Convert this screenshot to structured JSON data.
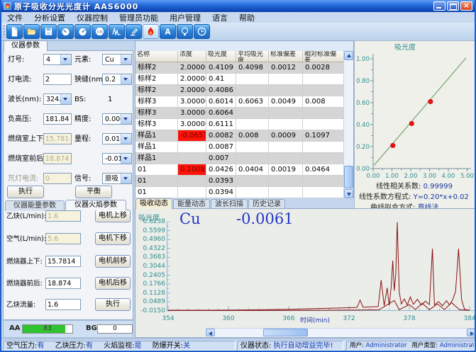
{
  "colors": {
    "titlebar_top": "#5d9cf4",
    "titlebar_bottom": "#0b3fae",
    "accent_blue": "#16369c",
    "red_cell_bg": "#fb1408",
    "red_cell_text": "#7c0000",
    "trace": "#8b0f0f",
    "curve_line": "#7cab7c",
    "curve_point": "#e01212",
    "tick_teal": "#2e8f8f",
    "progress_green": "#2fc42f"
  },
  "window": {
    "title": "原子吸收分光光度计  AAS6000"
  },
  "menu": [
    "文件",
    "分析设置",
    "仪器控制",
    "管理员功能",
    "用户管理",
    "语言",
    "帮助"
  ],
  "toolbar": {
    "icons": [
      "new-file",
      "open-folder",
      "save",
      "lamp-gauge",
      "energy-gauge",
      "gain-100-gauge",
      "wavelength-scan",
      "burner-adjust",
      "flame-ignite",
      "auto-zero",
      "lamp-turret",
      "timer"
    ]
  },
  "left_panel": {
    "tab": "仪器参数",
    "rows": [
      {
        "l1": "灯号:",
        "v1": "4",
        "l2": "元素:",
        "v2": "Cu"
      },
      {
        "l1": "灯电流:",
        "v1": "2",
        "l2": "狭缝(nm):",
        "v2": "0.2"
      },
      {
        "l1": "波长(nm):",
        "v1": "324.8",
        "l2": "BS:",
        "v2": "1"
      },
      {
        "l1": "负高压:",
        "v1": "181.84",
        "l2": "精度:",
        "v2": "0.0000"
      },
      {
        "l1": "燃烧室上下:",
        "v1": "15.7814",
        "l2": "量程:",
        "v2": "0.0150"
      },
      {
        "l1": "燃烧室前后:",
        "v1": "18.874",
        "l2": "",
        "v2": "-0.0150"
      },
      {
        "l1": "氘灯电流:",
        "v1": "0",
        "l2": "信号:",
        "v2": "原吸"
      }
    ],
    "execute_button": "执行",
    "balance_button": "平衡",
    "sub_tabs": [
      "仪器能量参数",
      "仪器火焰参数"
    ],
    "flame_rows": [
      {
        "label": "乙炔(L/min):",
        "value": "1.6",
        "button": "电机上移"
      },
      {
        "label": "空气(L/min):",
        "value": "5.6",
        "button": "电机下移"
      },
      {
        "label": "燃烧器上下:",
        "value": "15.7814",
        "button": "电机前移"
      },
      {
        "label": "燃烧器前后:",
        "value": "18.874",
        "button": "电机后移"
      },
      {
        "label": "乙炔流量:",
        "value": "1.6",
        "button": "执行"
      }
    ]
  },
  "results": {
    "project_label": "项目名称:",
    "project_name": "091119Cu",
    "columns": [
      "名称",
      "浓度",
      "吸光度",
      "平均吸光度",
      "标准偏差",
      "相对标准偏差"
    ],
    "rows": [
      [
        "标样2",
        "2.00000",
        "0.4109",
        "0.4098",
        "0.0012",
        "0.0028"
      ],
      [
        "标样2",
        "2.00000",
        "0.41",
        "",
        "",
        ""
      ],
      [
        "标样2",
        "2.00000",
        "0.4086",
        "",
        "",
        ""
      ],
      [
        "标样3",
        "3.00000",
        "0.6014",
        "0.6063",
        "0.0049",
        "0.008"
      ],
      [
        "标样3",
        "3.00000",
        "0.6064",
        "",
        "",
        ""
      ],
      [
        "标样3",
        "3.00000",
        "0.6111",
        "",
        "",
        ""
      ],
      [
        "样品1",
        "-0.0653",
        "0.0082",
        "0.008",
        "0.0009",
        "0.1097"
      ],
      [
        "样品1",
        "",
        "0.0087",
        "",
        "",
        ""
      ],
      [
        "样品1",
        "",
        "0.007",
        "",
        "",
        ""
      ],
      [
        "01",
        "0.1008",
        "0.0426",
        "0.0404",
        "0.0019",
        "0.0464"
      ],
      [
        "01",
        "",
        "0.0393",
        "",
        "",
        ""
      ],
      [
        "01",
        "",
        "0.0394",
        "",
        "",
        ""
      ]
    ],
    "red_cells": [
      [
        6,
        1
      ],
      [
        9,
        1
      ]
    ]
  },
  "bottom_tabs": [
    "吸收动态",
    "能量动态",
    "波长扫描",
    "历史记录"
  ],
  "readout": {
    "element": "Cu",
    "value": "-0.0061"
  },
  "signal": {
    "aa_label": "AA",
    "aa_value": "83",
    "bg_label": "BG",
    "bg_value": "0"
  },
  "statusbar": {
    "left": [
      {
        "label": "空气压力:",
        "value": "有"
      },
      {
        "label": "乙炔压力:",
        "value": "有"
      },
      {
        "label": "火焰监视:",
        "value": "是"
      },
      {
        "label": "防爆开关:",
        "value": "关"
      }
    ],
    "instrument_label": "仪器状态:",
    "instrument_value": "执行自动增益完毕!",
    "user_label": "用户:",
    "user_value": "Administrator",
    "user_type_label": "用户类型:",
    "user_type_value": "Administrator"
  },
  "chart_data": [
    {
      "id": "calibration-curve",
      "type": "scatter",
      "title": "吸光度",
      "x_ticks": [
        0,
        1,
        2,
        3,
        4,
        5
      ],
      "y_ticks": [
        0,
        0.2,
        0.4,
        0.6,
        0.8,
        1.0
      ],
      "x_tick_labels": [
        "0.00",
        "1.00",
        "2.00",
        "3.00",
        "4.00",
        "5.00"
      ],
      "y_tick_labels": [
        "0.00",
        "0.20",
        "0.40",
        "0.60",
        "0.80",
        "1.00"
      ],
      "xlim": [
        0,
        5.2
      ],
      "ylim": [
        0,
        1.05
      ],
      "fit_line": {
        "x": [
          0.05,
          4.95
        ],
        "y": [
          0.03,
          1.01
        ]
      },
      "points": {
        "x": [
          1.05,
          2.05,
          3.05
        ],
        "y": [
          0.21,
          0.41,
          0.61
        ]
      },
      "stats": [
        {
          "label": "线性相关系数:",
          "value": "0.99999"
        },
        {
          "label": "线性系数方程式:",
          "value": "Y=0.20*x+0.02"
        },
        {
          "label": "曲线拟合方式:",
          "value": "直线法"
        }
      ]
    },
    {
      "id": "absorption-dynamics",
      "type": "line",
      "ylabel": "吸光度",
      "xlabel": "时间(min)",
      "y_tick_labels": [
        "0.6238",
        "0.5599",
        "0.4960",
        "0.4322",
        "0.3683",
        "0.3044",
        "0.2405",
        "0.1766",
        "0.1128",
        "0.0489",
        "-0.0150"
      ],
      "x_ticks": [
        354,
        360,
        366,
        372,
        378,
        384
      ],
      "x_tick_labels": [
        "354",
        "360",
        "366",
        "372",
        "378",
        "384"
      ],
      "xlim": [
        354,
        384
      ],
      "ylim": [
        -0.015,
        0.6238
      ],
      "series": [
        {
          "name": "absorbance-trace",
          "points": [
            [
              354,
              -0.01
            ],
            [
              358,
              -0.01
            ],
            [
              361,
              -0.009
            ],
            [
              364,
              -0.006
            ],
            [
              366,
              -0.004
            ],
            [
              368,
              0
            ],
            [
              370,
              0.004
            ],
            [
              372,
              0.008
            ],
            [
              372.8,
              0.01
            ],
            [
              373.1,
              0.062
            ],
            [
              373.4,
              0.012
            ],
            [
              374.2,
              0.014
            ],
            [
              374.9,
              0.016
            ],
            [
              375.2,
              0.205
            ],
            [
              375.5,
              0.022
            ],
            [
              375.8,
              0.15
            ],
            [
              376,
              0.024
            ],
            [
              376.2,
              0.16
            ],
            [
              376.35,
              0.345
            ],
            [
              376.5,
              0.13
            ],
            [
              376.65,
              0.25
            ],
            [
              376.8,
              0.62
            ],
            [
              377,
              0.12
            ],
            [
              377.2,
              0.035
            ],
            [
              377.5,
              0.07
            ],
            [
              377.8,
              0.028
            ],
            [
              378.1,
              0.085
            ],
            [
              378.4,
              0.032
            ],
            [
              378.8,
              0.068
            ],
            [
              379.2,
              0.028
            ],
            [
              379.6,
              0.055
            ],
            [
              380,
              0.03
            ],
            [
              380.3,
              0.43
            ],
            [
              380.5,
              0.028
            ],
            [
              380.9,
              0.052
            ],
            [
              381.3,
              0.022
            ],
            [
              381.7,
              0.058
            ],
            [
              382,
              0.028
            ],
            [
              382.3,
              0.062
            ],
            [
              382.6,
              0.125
            ],
            [
              382.9,
              0.43
            ],
            [
              383.2,
              0.065
            ],
            [
              383.5,
              -0.005
            ],
            [
              384,
              -0.01
            ]
          ]
        },
        {
          "name": "baseline-trace",
          "points": [
            [
              354,
              -0.012
            ],
            [
              360,
              -0.012
            ],
            [
              366,
              -0.011
            ],
            [
              370,
              -0.01
            ],
            [
              373,
              -0.009
            ],
            [
              375,
              -0.007
            ],
            [
              376.5,
              0.06
            ],
            [
              377,
              -0.006
            ],
            [
              378,
              0.03
            ],
            [
              378.6,
              -0.005
            ],
            [
              379.3,
              0.04
            ],
            [
              380,
              -0.006
            ],
            [
              380.8,
              0.035
            ],
            [
              381.5,
              -0.006
            ],
            [
              382.2,
              0.045
            ],
            [
              383,
              -0.007
            ],
            [
              384,
              -0.01
            ]
          ]
        }
      ]
    }
  ]
}
